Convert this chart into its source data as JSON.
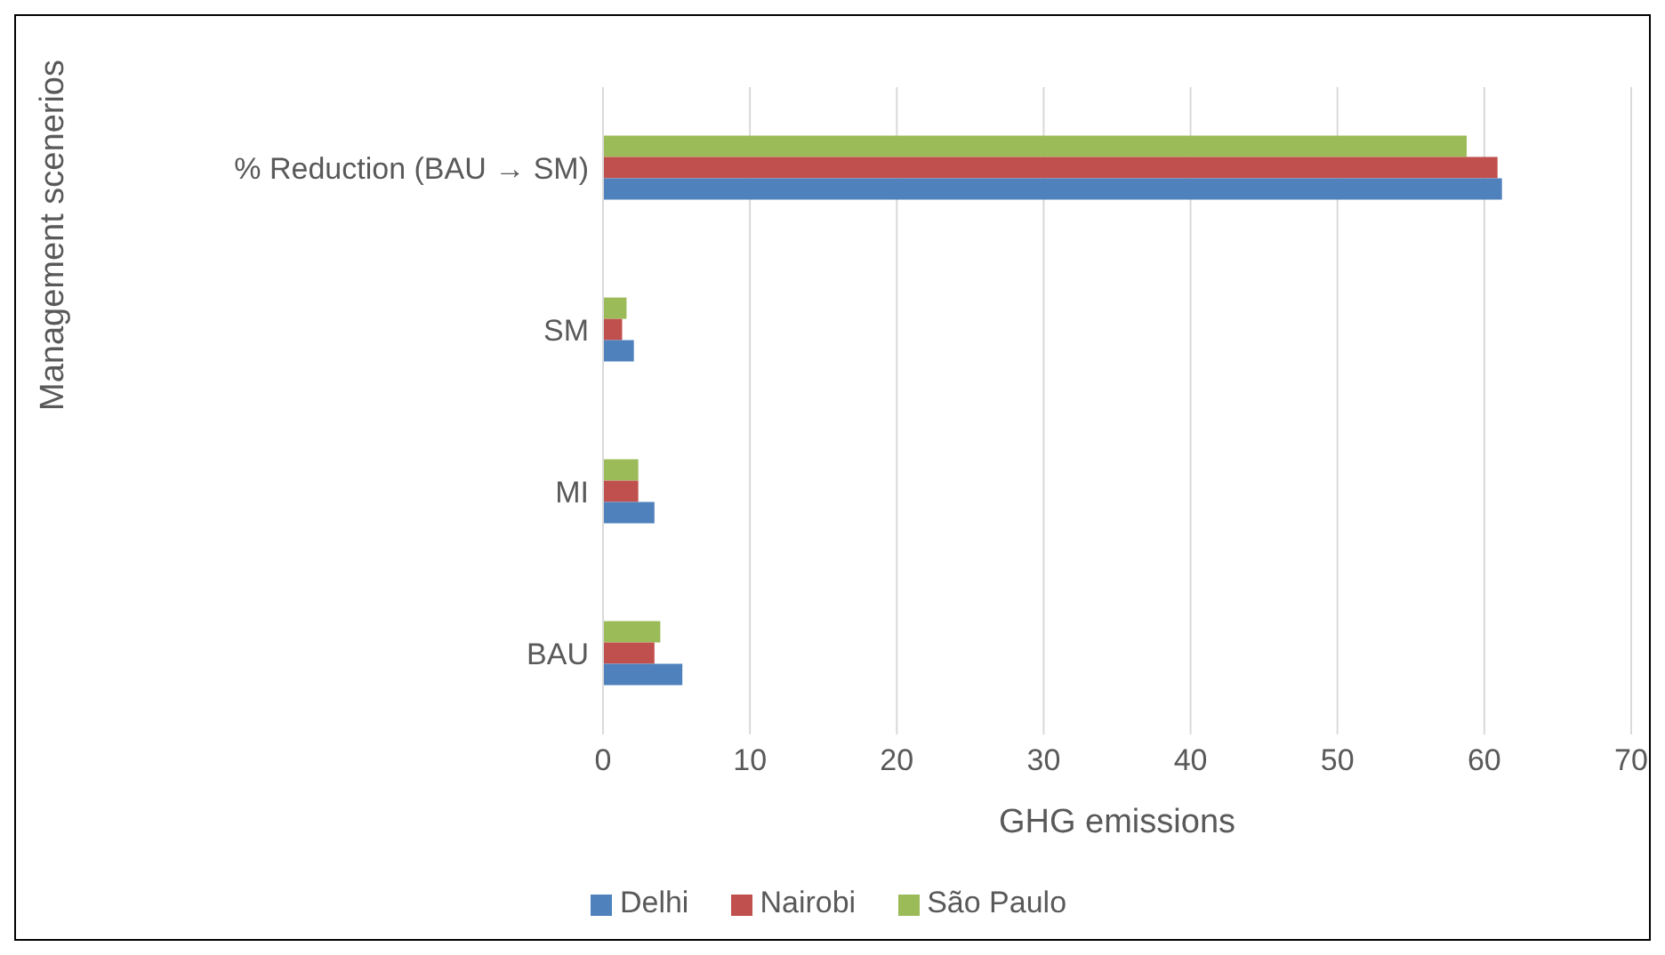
{
  "chart_data": {
    "type": "bar",
    "orientation": "horizontal",
    "xlabel": "GHG emissions",
    "ylabel": "Management scenerios",
    "categories": [
      "% Reduction (BAU → SM)",
      "SM",
      "MI",
      "BAU"
    ],
    "series": [
      {
        "name": "São Paulo",
        "color": "#9bbb59",
        "values": [
          58.8,
          1.6,
          2.4,
          3.9
        ]
      },
      {
        "name": "Nairobi",
        "color": "#c0504d",
        "values": [
          60.9,
          1.3,
          2.4,
          3.5
        ]
      },
      {
        "name": "Delhi",
        "color": "#4f81bd",
        "values": [
          61.2,
          2.1,
          3.5,
          5.4
        ]
      }
    ],
    "xlim": [
      0,
      70
    ],
    "xticks": [
      0,
      10,
      20,
      30,
      40,
      50,
      60,
      70
    ],
    "grid": "x",
    "legend": "bottom"
  }
}
